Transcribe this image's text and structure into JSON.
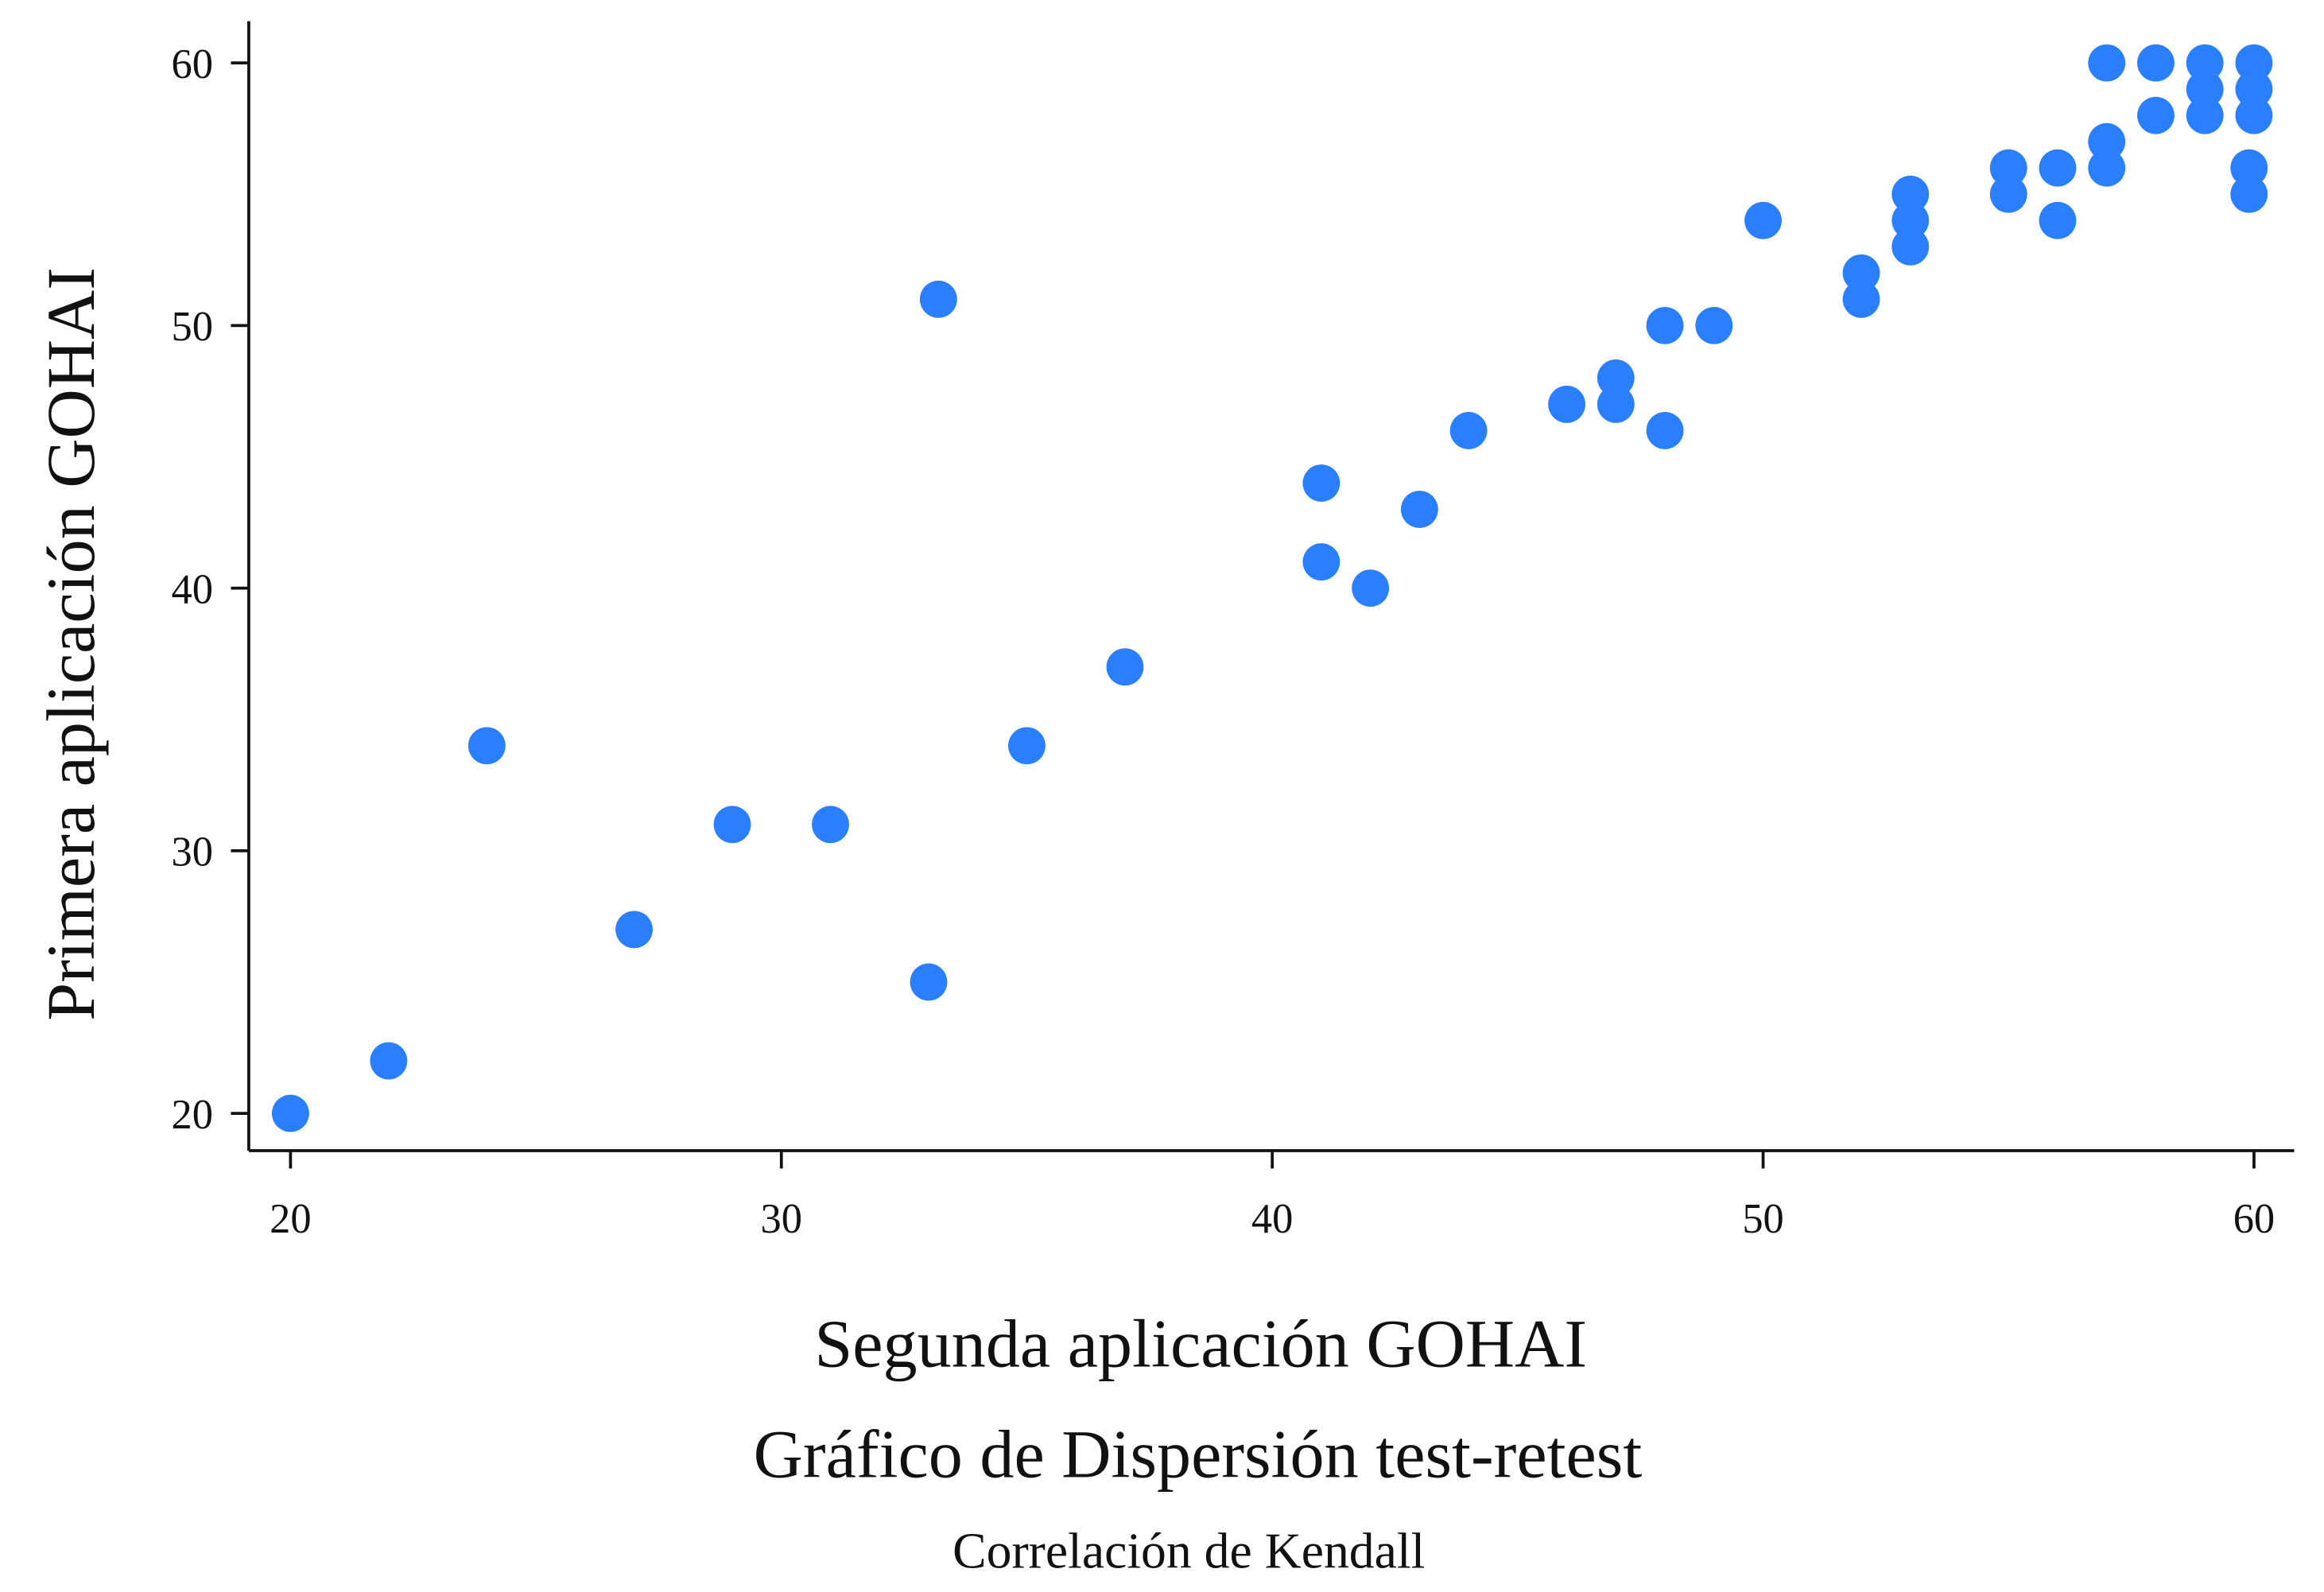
{
  "chart_data": {
    "type": "scatter",
    "title": "Gráfico de Dispersión test-retest",
    "subtitle": "Correlación de Kendall",
    "xlabel": "Segunda aplicación GOHAI",
    "ylabel": "Primera aplicación GOHAI",
    "xlim": [
      19.2,
      60.7
    ],
    "ylim": [
      18.5,
      61.5
    ],
    "xticks": [
      "20",
      "30",
      "40",
      "50",
      "60"
    ],
    "yticks": [
      "20",
      "30",
      "40",
      "50",
      "60"
    ],
    "grid": false,
    "color": "#2a7fff",
    "points": [
      [
        20,
        20
      ],
      [
        22,
        22
      ],
      [
        24,
        34
      ],
      [
        27,
        27
      ],
      [
        29,
        31
      ],
      [
        31,
        31
      ],
      [
        33,
        25
      ],
      [
        33.2,
        51
      ],
      [
        35,
        34
      ],
      [
        37,
        37
      ],
      [
        41,
        44
      ],
      [
        41,
        41
      ],
      [
        42,
        40
      ],
      [
        43,
        43
      ],
      [
        44,
        46
      ],
      [
        46,
        47
      ],
      [
        47,
        48
      ],
      [
        47,
        47
      ],
      [
        48,
        50
      ],
      [
        48,
        46
      ],
      [
        49,
        50
      ],
      [
        50,
        54
      ],
      [
        52,
        52
      ],
      [
        52,
        51
      ],
      [
        53,
        55
      ],
      [
        53,
        54
      ],
      [
        53,
        53
      ],
      [
        55,
        56
      ],
      [
        55,
        55
      ],
      [
        56,
        56
      ],
      [
        56,
        54
      ],
      [
        57,
        60
      ],
      [
        57,
        57
      ],
      [
        57,
        56
      ],
      [
        58,
        60
      ],
      [
        58,
        58
      ],
      [
        59,
        60
      ],
      [
        59,
        59
      ],
      [
        59,
        58
      ],
      [
        60,
        60
      ],
      [
        60,
        59
      ],
      [
        60,
        58
      ],
      [
        59.9,
        56
      ],
      [
        59.9,
        55
      ]
    ]
  }
}
